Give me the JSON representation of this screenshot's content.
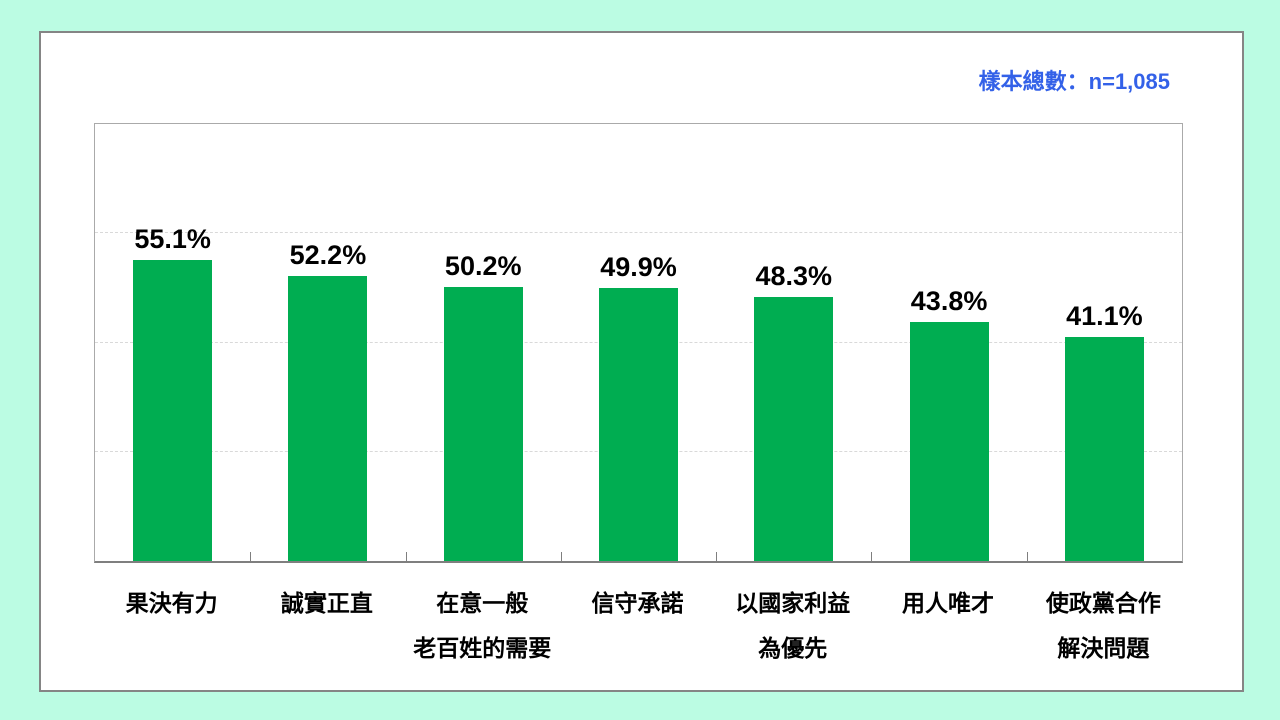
{
  "colors": {
    "background": "#bbfce3",
    "card_background": "#ffffff",
    "card_border": "#858585",
    "plot_border": "#aaaaaa",
    "axis_line": "#7f7f7f",
    "gridline": "#d9d9d9",
    "bar_fill": "#00AD51",
    "note_blue": "#3361e8",
    "label_text": "#000000"
  },
  "header": {
    "sample_note": "樣本總數：n=1,085"
  },
  "chart_data": {
    "type": "bar",
    "title": "",
    "xlabel": "",
    "ylabel": "",
    "categories": [
      "果決有力",
      "誠實正直",
      "在意一般\n老百姓的需要",
      "信守承諾",
      "以國家利益\n為優先",
      "用人唯才",
      "使政黨合作\n解決問題"
    ],
    "values": [
      55.1,
      52.2,
      50.2,
      49.9,
      48.3,
      43.8,
      41.1
    ],
    "value_labels": [
      "55.1%",
      "52.2%",
      "50.2%",
      "49.9%",
      "48.3%",
      "43.8%",
      "41.1%"
    ],
    "ylim": [
      0,
      80
    ],
    "gridline_values": [
      20,
      40,
      60
    ],
    "grid": "horizontal-dashed",
    "y_tick_labels_visible": false,
    "legend_position": "none",
    "bar_color": "#00AD51"
  }
}
